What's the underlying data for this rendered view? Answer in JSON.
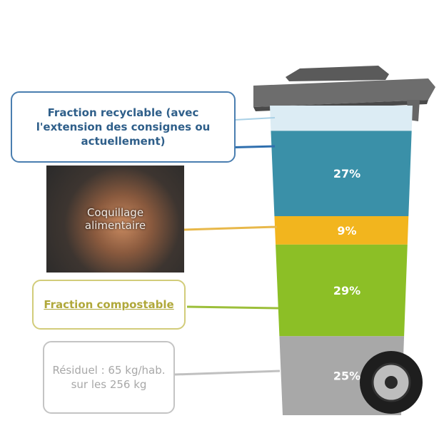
{
  "chart_data": {
    "type": "stacked-bin",
    "annotations": [
      "Fraction recyclable (avec l'extension des consignes ou actuellement)",
      "Coquillage alimentaire",
      "Fraction compostable",
      "Résiduel : 65 kg/hab. sur les 256 kg"
    ],
    "series": [
      {
        "color": "#dcecf4",
        "values": [
          8
        ],
        "value_labels": [
          null
        ]
      },
      {
        "color": "#3a90a8",
        "values": [
          27
        ],
        "value_labels": [
          "27%"
        ]
      },
      {
        "color": "#f2b51e",
        "values": [
          9
        ],
        "value_labels": [
          "9%"
        ]
      },
      {
        "color": "#8cbf26",
        "values": [
          29
        ],
        "value_labels": [
          "29%"
        ]
      },
      {
        "color": "#a8a8a8",
        "values": [
          25
        ],
        "value_labels": [
          "25%"
        ]
      }
    ]
  }
}
